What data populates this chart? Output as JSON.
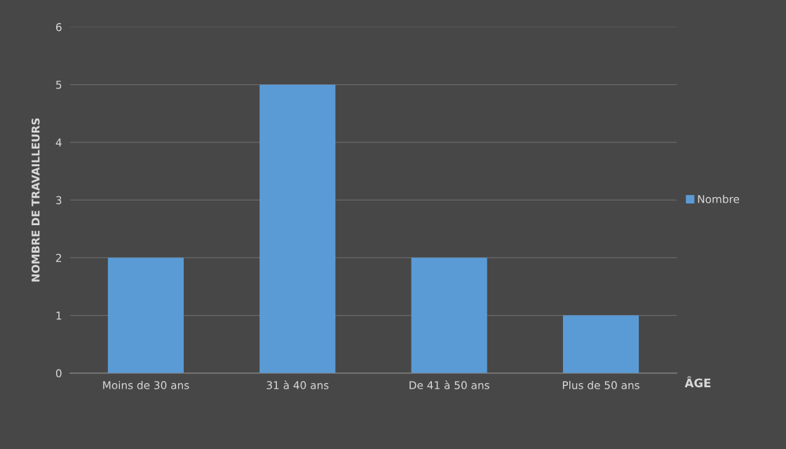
{
  "chart_data": {
    "type": "bar",
    "xlabel": "ÂGE",
    "ylabel": "NOMBRE DE TRAVAILLEURS",
    "categories": [
      "Moins de 30 ans",
      "31 à 40 ans",
      "De 41 à 50 ans",
      "Plus de 50 ans"
    ],
    "series": [
      {
        "name": "Nombre",
        "color": "#5b9bd5",
        "values": [
          2,
          5,
          2,
          1
        ]
      }
    ],
    "ylim": [
      0,
      6
    ],
    "yticks": [
      0,
      1,
      2,
      3,
      4,
      5,
      6
    ],
    "grid": "y",
    "legend": "right"
  }
}
